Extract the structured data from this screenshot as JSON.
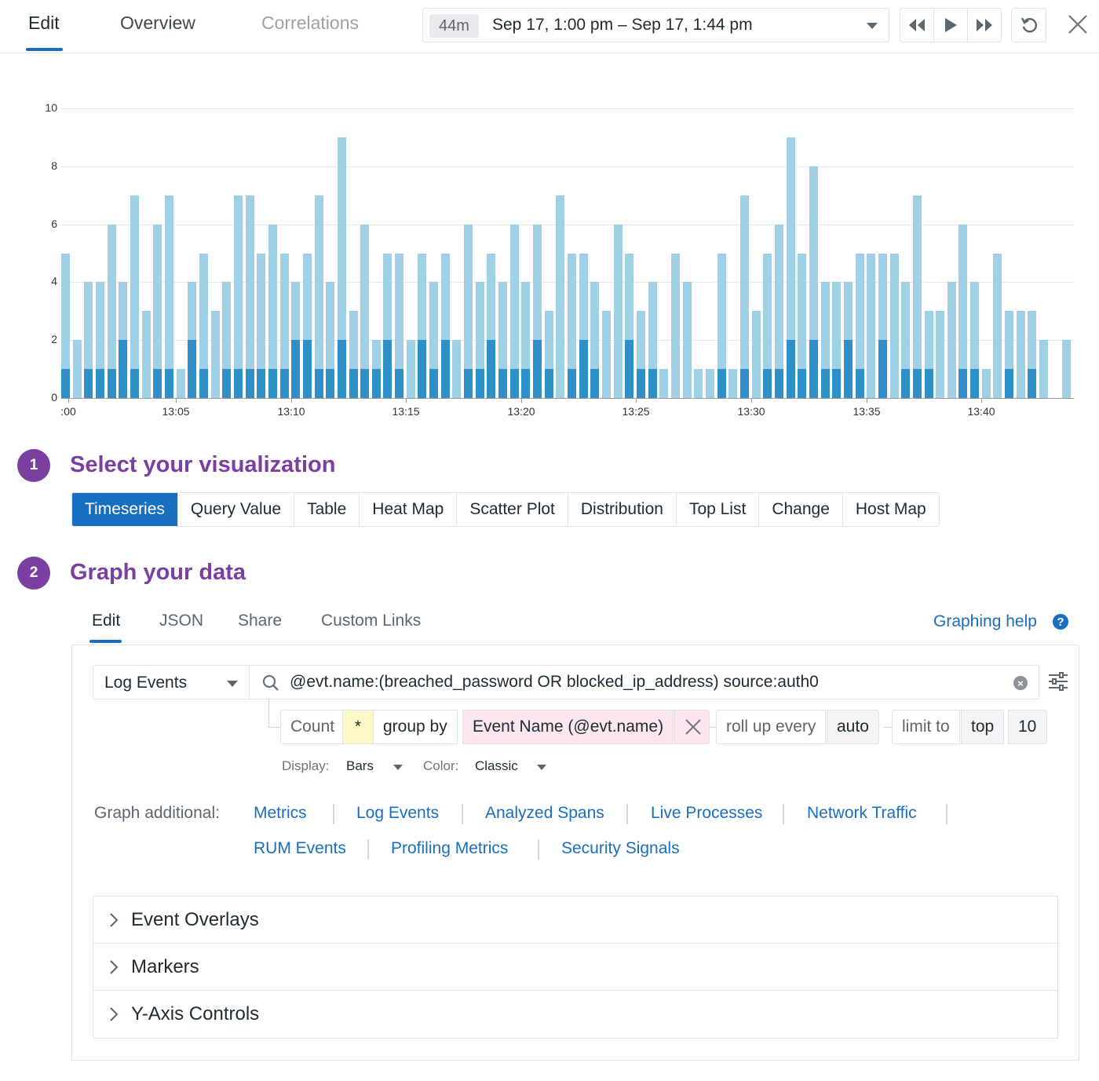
{
  "topbar": {
    "tabs": [
      {
        "label": "Edit",
        "active": true
      },
      {
        "label": "Overview",
        "active": false
      },
      {
        "label": "Correlations",
        "active": false,
        "disabled": true
      }
    ],
    "timepicker": {
      "duration_badge": "44m",
      "range_text": "Sep 17, 1:00 pm – Sep 17, 1:44 pm"
    },
    "controls": [
      "rewind-icon",
      "play-icon",
      "fast-forward-icon",
      "reset-icon",
      "close-icon"
    ]
  },
  "chart_data": {
    "type": "bar",
    "stacked": true,
    "title": "",
    "xlabel": "",
    "ylabel": "",
    "ylim": [
      0,
      10
    ],
    "yticks": [
      0,
      2,
      4,
      6,
      8,
      10
    ],
    "xtick_labels": [
      ":00",
      "13:05",
      "13:10",
      "13:15",
      "13:20",
      "13:25",
      "13:30",
      "13:35",
      "13:40"
    ],
    "grid": true,
    "colors": {
      "light": "#9fd0e6",
      "dark": "#2e8fc9"
    },
    "series": [
      {
        "name": "dark",
        "values": [
          1,
          0,
          1,
          1,
          1,
          2,
          1,
          0,
          1,
          1,
          0,
          2,
          1,
          0,
          1,
          1,
          1,
          1,
          1,
          1,
          2,
          2,
          1,
          1,
          2,
          1,
          1,
          1,
          2,
          1,
          0,
          2,
          1,
          2,
          0,
          1,
          1,
          2,
          1,
          1,
          1,
          2,
          1,
          0,
          1,
          2,
          1,
          0,
          0,
          2,
          1,
          1,
          0,
          0,
          0,
          0,
          0,
          1,
          0,
          1,
          0,
          1,
          1,
          2,
          1,
          2,
          1,
          1,
          2,
          1,
          0,
          2,
          0,
          1,
          1,
          1,
          0,
          0,
          1,
          1,
          0,
          0,
          1,
          0,
          1,
          0,
          0,
          0
        ]
      },
      {
        "name": "total",
        "values": [
          5,
          2,
          4,
          4,
          6,
          4,
          7,
          3,
          6,
          7,
          1,
          4,
          5,
          3,
          4,
          7,
          7,
          5,
          6,
          5,
          4,
          5,
          7,
          4,
          9,
          3,
          6,
          2,
          5,
          5,
          2,
          5,
          4,
          5,
          2,
          6,
          4,
          5,
          4,
          6,
          4,
          6,
          3,
          7,
          5,
          5,
          4,
          3,
          6,
          5,
          3,
          4,
          1,
          5,
          4,
          1,
          1,
          5,
          1,
          7,
          3,
          5,
          6,
          9,
          5,
          8,
          4,
          4,
          4,
          5,
          5,
          5,
          5,
          4,
          7,
          3,
          3,
          4,
          6,
          4,
          1,
          5,
          3,
          3,
          3,
          2,
          0,
          2
        ]
      }
    ]
  },
  "step1": {
    "number": "1",
    "title": "Select your visualization",
    "options": [
      {
        "label": "Timeseries",
        "active": true
      },
      {
        "label": "Query Value"
      },
      {
        "label": "Table"
      },
      {
        "label": "Heat Map"
      },
      {
        "label": "Scatter Plot"
      },
      {
        "label": "Distribution"
      },
      {
        "label": "Top List"
      },
      {
        "label": "Change"
      },
      {
        "label": "Host Map"
      }
    ]
  },
  "step2": {
    "number": "2",
    "title": "Graph your data",
    "tabs": [
      {
        "label": "Edit",
        "active": true
      },
      {
        "label": "JSON"
      },
      {
        "label": "Share"
      },
      {
        "label": "Custom Links"
      }
    ],
    "help_link": "Graphing help",
    "source": "Log Events",
    "query": "@evt.name:(breached_password OR blocked_ip_address) source:auth0",
    "aggregation": {
      "count_label": "Count",
      "count_value": "*",
      "group_by_label": "group by",
      "group_by_value": "Event Name (@evt.name)",
      "rollup_label": "roll up every",
      "rollup_value": "auto",
      "limit_label": "limit to",
      "limit_order": "top",
      "limit_value": "10"
    },
    "display_label": "Display:",
    "display_value": "Bars",
    "color_label": "Color:",
    "color_value": "Classic",
    "graph_additional_label": "Graph additional:",
    "graph_additional": [
      "Metrics",
      "Log Events",
      "Analyzed Spans",
      "Live Processes",
      "Network Traffic",
      "RUM Events",
      "Profiling Metrics",
      "Security Signals"
    ],
    "accordions": [
      "Event Overlays",
      "Markers",
      "Y-Axis Controls"
    ]
  }
}
